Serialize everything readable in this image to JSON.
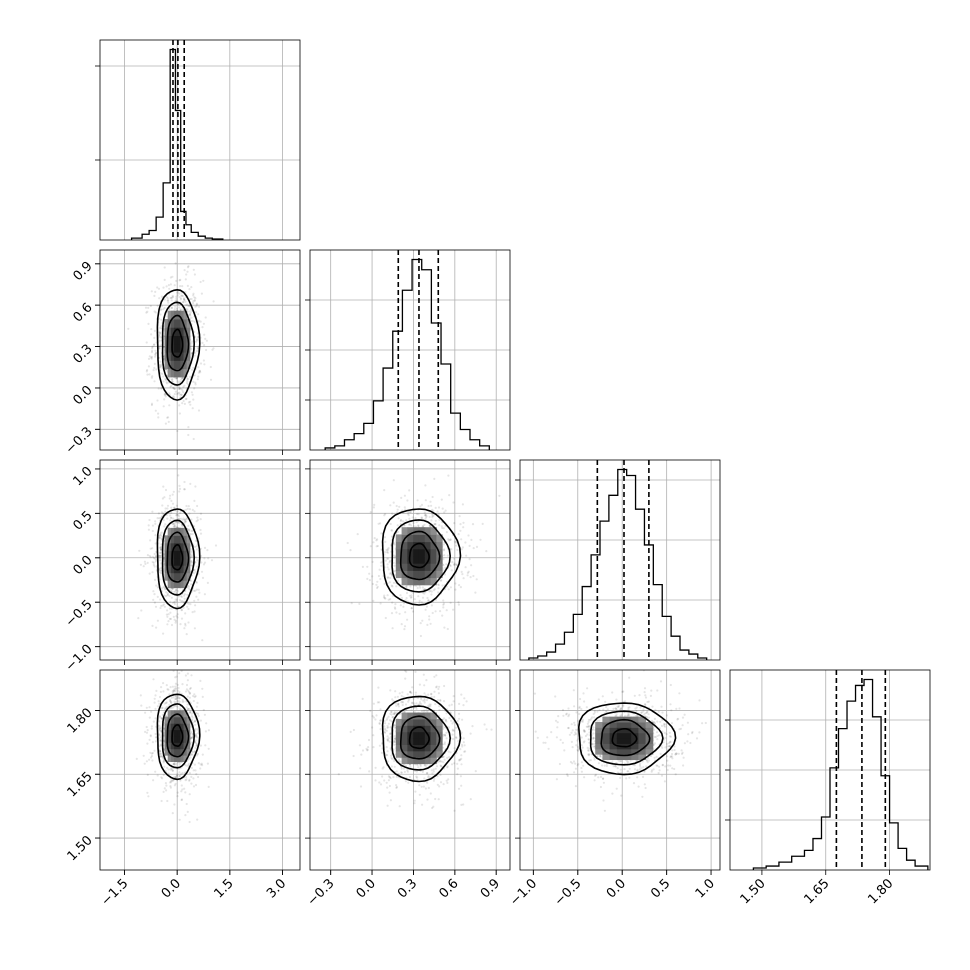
{
  "chart_data": {
    "type": "corner",
    "parameters": [
      {
        "index": 0,
        "range": [
          -2.2,
          3.5
        ],
        "ticks": [
          -1.5,
          0.0,
          1.5,
          3.0
        ],
        "tick_labels": [
          "−1.5",
          "0.0",
          "1.5",
          "3.0"
        ],
        "quantiles": [
          -0.12,
          0.02,
          0.2
        ],
        "hist": {
          "edges": [
            -1.3,
            -1.0,
            -0.8,
            -0.6,
            -0.4,
            -0.2,
            -0.05,
            0.1,
            0.25,
            0.4,
            0.6,
            0.8,
            1.0,
            1.3
          ],
          "counts": [
            0.01,
            0.03,
            0.05,
            0.12,
            0.3,
            1.0,
            0.68,
            0.15,
            0.08,
            0.04,
            0.02,
            0.01,
            0.005
          ]
        },
        "y_ticks": [
          0.4,
          0.87
        ]
      },
      {
        "index": 1,
        "range": [
          -0.45,
          1.0
        ],
        "ticks": [
          -0.3,
          0.0,
          0.3,
          0.6,
          0.9
        ],
        "tick_labels": [
          "−0.3",
          "0.0",
          "0.3",
          "0.6",
          "0.9"
        ],
        "quantiles": [
          0.19,
          0.34,
          0.48
        ],
        "hist": {
          "edges": [
            -0.34,
            -0.27,
            -0.2,
            -0.13,
            -0.06,
            0.01,
            0.08,
            0.15,
            0.22,
            0.29,
            0.36,
            0.43,
            0.5,
            0.57,
            0.64,
            0.71,
            0.78,
            0.85
          ],
          "counts": [
            0.01,
            0.02,
            0.05,
            0.08,
            0.13,
            0.24,
            0.4,
            0.58,
            0.78,
            0.93,
            0.88,
            0.62,
            0.42,
            0.18,
            0.1,
            0.05,
            0.02
          ]
        },
        "y_ticks": [
          0.25,
          0.5,
          0.75
        ]
      },
      {
        "index": 2,
        "range": [
          -1.15,
          1.1
        ],
        "ticks": [
          -1.0,
          -0.5,
          0.0,
          0.5,
          1.0
        ],
        "tick_labels": [
          "−1.0",
          "−0.5",
          "0.0",
          "0.5",
          "1.0"
        ],
        "quantiles": [
          -0.28,
          0.02,
          0.3
        ],
        "hist": {
          "edges": [
            -1.05,
            -0.95,
            -0.85,
            -0.75,
            -0.65,
            -0.55,
            -0.45,
            -0.35,
            -0.25,
            -0.15,
            -0.05,
            0.05,
            0.15,
            0.25,
            0.35,
            0.45,
            0.55,
            0.65,
            0.75,
            0.85,
            0.95
          ],
          "counts": [
            0.01,
            0.02,
            0.04,
            0.08,
            0.14,
            0.23,
            0.37,
            0.53,
            0.7,
            0.83,
            0.96,
            0.93,
            0.76,
            0.58,
            0.38,
            0.22,
            0.12,
            0.05,
            0.03,
            0.01
          ]
        },
        "y_ticks": [
          0.3,
          0.6,
          0.9
        ]
      },
      {
        "index": 3,
        "range": [
          1.425,
          1.895
        ],
        "ticks": [
          1.5,
          1.65,
          1.8
        ],
        "tick_labels": [
          "1.50",
          "1.65",
          "1.80"
        ],
        "quantiles": [
          1.675,
          1.735,
          1.79
        ],
        "hist": {
          "edges": [
            1.48,
            1.51,
            1.54,
            1.57,
            1.6,
            1.62,
            1.64,
            1.66,
            1.68,
            1.7,
            1.72,
            1.74,
            1.76,
            1.78,
            1.8,
            1.82,
            1.84,
            1.86,
            1.89
          ],
          "counts": [
            0.01,
            0.02,
            0.04,
            0.07,
            0.1,
            0.16,
            0.27,
            0.52,
            0.72,
            0.86,
            0.94,
            0.97,
            0.78,
            0.48,
            0.24,
            0.11,
            0.05,
            0.02
          ]
        },
        "y_ticks": [
          0.25,
          0.5,
          0.75
        ]
      }
    ],
    "pairs": [
      {
        "x": 0,
        "y": 1,
        "center": [
          0.0,
          0.32
        ],
        "sigma": [
          0.3,
          0.2
        ],
        "corr": 0.0
      },
      {
        "x": 0,
        "y": 2,
        "center": [
          0.0,
          0.0
        ],
        "sigma": [
          0.3,
          0.28
        ],
        "corr": 0.0
      },
      {
        "x": 1,
        "y": 2,
        "center": [
          0.34,
          0.02
        ],
        "sigma": [
          0.14,
          0.27
        ],
        "corr": 0.0
      },
      {
        "x": 0,
        "y": 3,
        "center": [
          0.0,
          1.74
        ],
        "sigma": [
          0.3,
          0.05
        ],
        "corr": 0.0
      },
      {
        "x": 1,
        "y": 3,
        "center": [
          0.34,
          1.735
        ],
        "sigma": [
          0.14,
          0.05
        ],
        "corr": 0.0
      },
      {
        "x": 2,
        "y": 3,
        "center": [
          0.02,
          1.735
        ],
        "sigma": [
          0.27,
          0.042
        ],
        "corr": 0.0
      }
    ],
    "contour_levels_sigma": [
      0.5,
      1.0,
      1.5,
      2.0
    ],
    "grid": true,
    "histogram_color": "#000000",
    "contour_color": "#000000",
    "scatter_color": "#7f7f7f"
  }
}
